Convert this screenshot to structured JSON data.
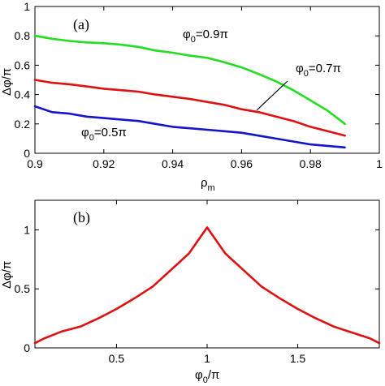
{
  "chart_data": [
    {
      "type": "line",
      "panel_label": "(a)",
      "xlabel": "ρ",
      "xlabel_sub": "m",
      "ylabel": "Δφ/π",
      "xlim": [
        0.9,
        1.0
      ],
      "ylim": [
        0,
        1.0
      ],
      "xticks": [
        0.9,
        0.92,
        0.94,
        0.96,
        0.98,
        1.0
      ],
      "xtick_labels": [
        "0.9",
        "0.92",
        "0.94",
        "0.96",
        "0.98",
        "1"
      ],
      "yticks": [
        0,
        0.2,
        0.4,
        0.6,
        0.8,
        1.0
      ],
      "ytick_labels": [
        "0",
        "0.2",
        "0.4",
        "0.6",
        "0.8",
        "1"
      ],
      "grid": false,
      "series": [
        {
          "name": "φ0=0.9π",
          "color": "#22dd22",
          "x": [
            0.9,
            0.905,
            0.91,
            0.915,
            0.92,
            0.925,
            0.93,
            0.935,
            0.94,
            0.945,
            0.95,
            0.955,
            0.96,
            0.965,
            0.97,
            0.975,
            0.98,
            0.985,
            0.99
          ],
          "y": [
            0.8,
            0.78,
            0.765,
            0.755,
            0.75,
            0.74,
            0.725,
            0.7,
            0.685,
            0.665,
            0.65,
            0.62,
            0.585,
            0.54,
            0.49,
            0.43,
            0.36,
            0.29,
            0.2
          ]
        },
        {
          "name": "φ0=0.7π",
          "color": "#e01010",
          "x": [
            0.9,
            0.905,
            0.91,
            0.915,
            0.92,
            0.925,
            0.93,
            0.935,
            0.94,
            0.945,
            0.95,
            0.955,
            0.96,
            0.965,
            0.97,
            0.975,
            0.98,
            0.985,
            0.99
          ],
          "y": [
            0.5,
            0.48,
            0.47,
            0.455,
            0.44,
            0.43,
            0.42,
            0.4,
            0.385,
            0.37,
            0.35,
            0.33,
            0.3,
            0.28,
            0.25,
            0.22,
            0.18,
            0.15,
            0.12
          ]
        },
        {
          "name": "φ0=0.5π",
          "color": "#1414cc",
          "x": [
            0.9,
            0.905,
            0.91,
            0.915,
            0.92,
            0.925,
            0.93,
            0.935,
            0.94,
            0.945,
            0.95,
            0.955,
            0.96,
            0.965,
            0.97,
            0.975,
            0.98,
            0.985,
            0.99
          ],
          "y": [
            0.32,
            0.28,
            0.27,
            0.25,
            0.24,
            0.23,
            0.22,
            0.2,
            0.18,
            0.17,
            0.16,
            0.15,
            0.14,
            0.12,
            0.1,
            0.08,
            0.06,
            0.05,
            0.04
          ]
        }
      ],
      "annotations": [
        {
          "text": "φ",
          "sub": "0",
          "rest": "=0.9π"
        },
        {
          "text": "φ",
          "sub": "0",
          "rest": "=0.7π"
        },
        {
          "text": "φ",
          "sub": "0",
          "rest": "=0.5π"
        }
      ]
    },
    {
      "type": "line",
      "panel_label": "(b)",
      "xlabel": "φ",
      "xlabel_sub": "0",
      "xlabel_rest": "/π",
      "ylabel": "Δφ/π",
      "xlim": [
        0.05,
        1.95
      ],
      "ylim": [
        0,
        1.25
      ],
      "xticks": [
        0.5,
        1.0,
        1.5
      ],
      "xtick_labels": [
        "0.5",
        "1",
        "1.5"
      ],
      "yticks": [
        0,
        0.5,
        1.0
      ],
      "ytick_labels": [
        "0",
        "0.5",
        "1"
      ],
      "grid": false,
      "series": [
        {
          "name": "",
          "color": "#e01010",
          "x": [
            0.05,
            0.1,
            0.2,
            0.3,
            0.4,
            0.5,
            0.6,
            0.7,
            0.8,
            0.9,
            0.95,
            1.0,
            1.05,
            1.1,
            1.2,
            1.3,
            1.4,
            1.5,
            1.6,
            1.7,
            1.8,
            1.9,
            1.95
          ],
          "y": [
            0.04,
            0.08,
            0.14,
            0.18,
            0.25,
            0.33,
            0.42,
            0.52,
            0.66,
            0.8,
            0.91,
            1.02,
            0.91,
            0.8,
            0.66,
            0.52,
            0.42,
            0.33,
            0.25,
            0.18,
            0.13,
            0.08,
            0.04
          ]
        }
      ]
    }
  ]
}
